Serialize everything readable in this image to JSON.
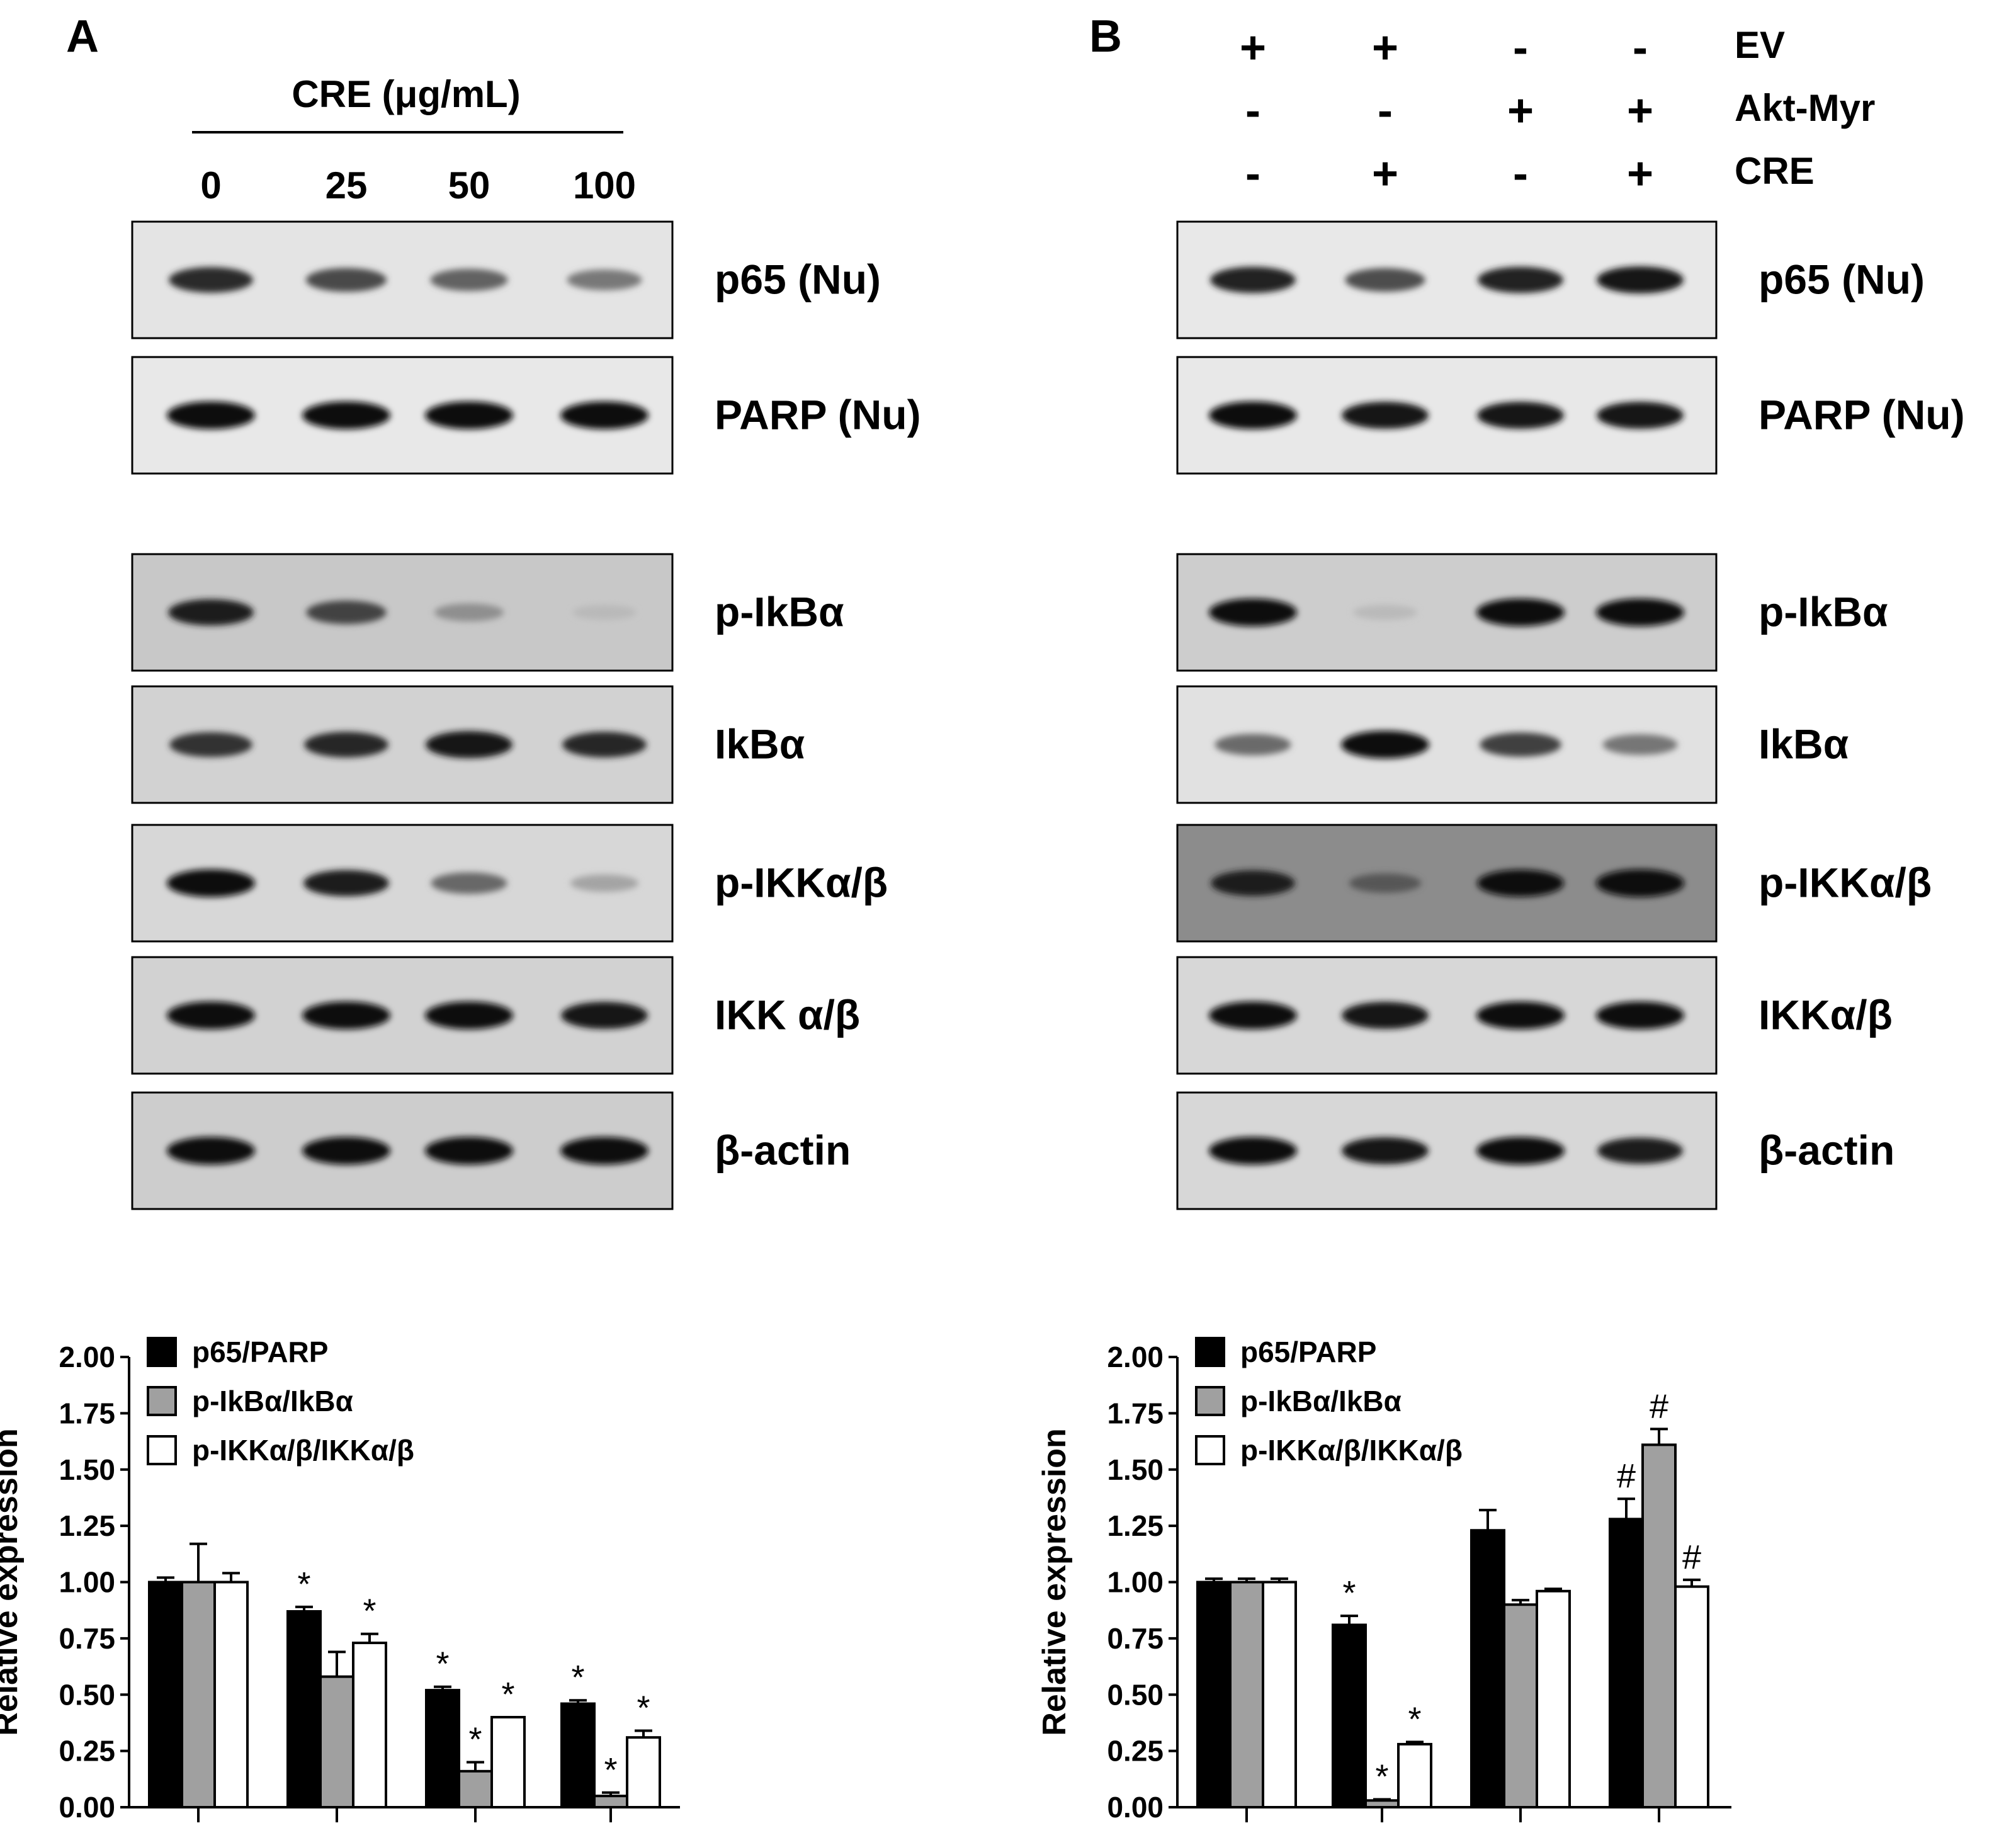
{
  "panel_a": {
    "label": "A",
    "treatment_label": "CRE (μg/mL)",
    "lanes": [
      "0",
      "25",
      "50",
      "100"
    ],
    "blots": [
      {
        "name": "p65 (Nu)",
        "bg": 228,
        "intensity": [
          0.85,
          0.72,
          0.6,
          0.5
        ]
      },
      {
        "name": "PARP (Nu)",
        "bg": 232,
        "intensity": [
          1,
          1,
          1,
          1
        ]
      },
      {
        "name": "p-IkBα",
        "bg": 200,
        "intensity": [
          0.9,
          0.7,
          0.3,
          0.08
        ]
      },
      {
        "name": "IkBα",
        "bg": 210,
        "intensity": [
          0.8,
          0.85,
          0.95,
          0.85
        ]
      },
      {
        "name": "p-IKKα/β",
        "bg": 215,
        "intensity": [
          1,
          0.9,
          0.55,
          0.25
        ]
      },
      {
        "name": "IKK α/β",
        "bg": 210,
        "intensity": [
          1,
          1,
          1,
          0.95
        ]
      },
      {
        "name": "β-actin",
        "bg": 205,
        "intensity": [
          1,
          1,
          1,
          1
        ]
      }
    ]
  },
  "panel_b": {
    "label": "B",
    "conditions": [
      {
        "name": "EV",
        "signs": [
          "+",
          "+",
          "-",
          "-"
        ]
      },
      {
        "name": "Akt-Myr",
        "signs": [
          "-",
          "-",
          "+",
          "+"
        ]
      },
      {
        "name": "CRE",
        "signs": [
          "-",
          "+",
          "-",
          "+"
        ]
      }
    ],
    "blots": [
      {
        "name": "p65 (Nu)",
        "bg": 232,
        "intensity": [
          0.9,
          0.7,
          0.9,
          0.95
        ]
      },
      {
        "name": "PARP (Nu)",
        "bg": 232,
        "intensity": [
          1,
          0.95,
          0.95,
          0.95
        ]
      },
      {
        "name": "p-IkBα",
        "bg": 205,
        "intensity": [
          1,
          0.1,
          1,
          1
        ]
      },
      {
        "name": "IkBα",
        "bg": 225,
        "intensity": [
          0.55,
          1,
          0.75,
          0.5
        ]
      },
      {
        "name": "p-IKKα/β",
        "bg": 140,
        "intensity": [
          0.85,
          0.4,
          0.95,
          1
        ]
      },
      {
        "name": "IKKα/β",
        "bg": 215,
        "intensity": [
          1,
          0.95,
          1,
          1
        ]
      },
      {
        "name": "β-actin",
        "bg": 215,
        "intensity": [
          1,
          0.95,
          1,
          0.9
        ]
      }
    ]
  },
  "colors": {
    "series_1": "#000000",
    "series_2": "#a0a0a0",
    "series_3": "#ffffff"
  },
  "chart_data": [
    {
      "type": "bar",
      "panel": "A",
      "ylabel": "Relative expression",
      "ylim": [
        0,
        2
      ],
      "yticks": [
        "0.00",
        "0.25",
        "0.50",
        "0.75",
        "1.00",
        "1.25",
        "1.50",
        "1.75",
        "2.00"
      ],
      "legend_position": "top-left",
      "series": [
        {
          "name": "p65/PARP",
          "values": [
            1.0,
            0.87,
            0.52,
            0.46
          ],
          "errors": [
            0.02,
            0.02,
            0.015,
            0.015
          ],
          "marks": [
            "",
            "*",
            "*",
            "*"
          ]
        },
        {
          "name": "p-IkBα/IkBα",
          "values": [
            1.0,
            0.58,
            0.16,
            0.05
          ],
          "errors": [
            0.17,
            0.11,
            0.04,
            0.015
          ],
          "marks": [
            "",
            "",
            "*",
            "*"
          ]
        },
        {
          "name": "p-IKKα/β/IKKα/β",
          "values": [
            1.0,
            0.73,
            0.4,
            0.31
          ],
          "errors": [
            0.04,
            0.04,
            0.0,
            0.03
          ],
          "marks": [
            "",
            "*",
            "*",
            "*"
          ]
        }
      ]
    },
    {
      "type": "bar",
      "panel": "B",
      "ylabel": "Relative expression",
      "ylim": [
        0,
        2
      ],
      "yticks": [
        "0.00",
        "0.25",
        "0.50",
        "0.75",
        "1.00",
        "1.25",
        "1.50",
        "1.75",
        "2.00"
      ],
      "legend_position": "top-left",
      "series": [
        {
          "name": "p65/PARP",
          "values": [
            1.0,
            0.81,
            1.23,
            1.28
          ],
          "errors": [
            0.015,
            0.04,
            0.09,
            0.09
          ],
          "marks": [
            "",
            "*",
            "",
            "#"
          ]
        },
        {
          "name": "p-IkBα/IkBα",
          "values": [
            1.0,
            0.03,
            0.9,
            1.61
          ],
          "errors": [
            0.015,
            0.005,
            0.02,
            0.07
          ],
          "marks": [
            "",
            "*",
            "",
            "#"
          ]
        },
        {
          "name": "p-IKKα/β/IKKα/β",
          "values": [
            1.0,
            0.28,
            0.96,
            0.98
          ],
          "errors": [
            0.015,
            0.01,
            0.01,
            0.03
          ],
          "marks": [
            "",
            "*",
            "",
            "#"
          ]
        }
      ]
    }
  ]
}
